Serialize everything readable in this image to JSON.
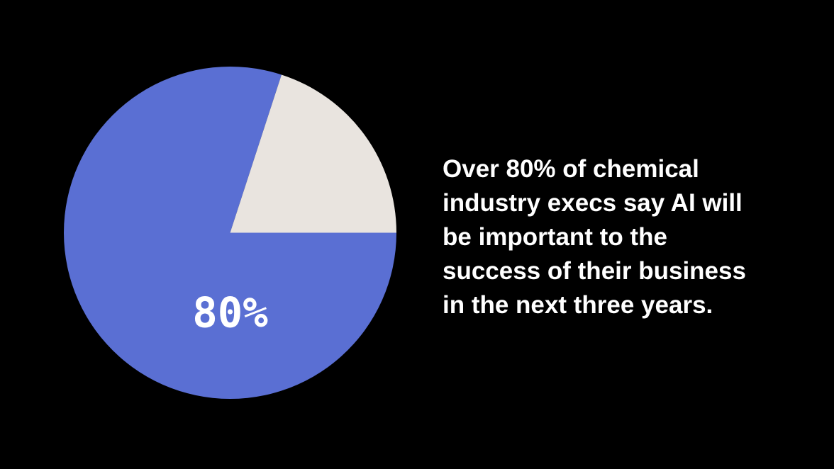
{
  "background_color": "#000000",
  "chart_data": {
    "type": "pie",
    "title": "",
    "legend": "none",
    "direction": "clockwise",
    "start_angle_deg": 90,
    "center_label": "80%",
    "slices": [
      {
        "value": 80,
        "color": "#5A6FD3",
        "label": "80%"
      },
      {
        "value": 20,
        "color": "#E9E4DF",
        "label": ""
      }
    ]
  },
  "statement": {
    "color": "#FFFFFF",
    "text": "Over 80% of chemical industry execs say AI will be important to the success of their business in the next three years.",
    "lines": [
      "Over 80% of chemical",
      "industry execs say AI will",
      "be important to the",
      "success of their business",
      "in the next three years."
    ]
  }
}
